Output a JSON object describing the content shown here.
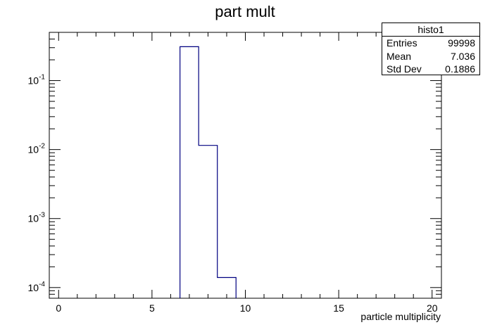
{
  "chart_data": {
    "type": "histogram",
    "title": "part mult",
    "xlabel": "particle multiplicity",
    "ylabel": "",
    "xlim": [
      -0.5,
      20.5
    ],
    "ylim": [
      7e-05,
      0.5
    ],
    "yscale": "log",
    "bin_width": 1,
    "bins": [
      {
        "x0": 6.5,
        "x1": 7.5,
        "value": 0.31
      },
      {
        "x0": 7.5,
        "x1": 8.5,
        "value": 0.0115
      },
      {
        "x0": 8.5,
        "x1": 9.5,
        "value": 0.00014
      }
    ],
    "line_color": "#000080",
    "x_ticks": [
      0,
      5,
      10,
      15,
      20
    ],
    "y_ticks": [
      {
        "value": 0.1,
        "base": "10",
        "exp": "-1"
      },
      {
        "value": 0.01,
        "base": "10",
        "exp": "-2"
      },
      {
        "value": 0.001,
        "base": "10",
        "exp": "-3"
      },
      {
        "value": 0.0001,
        "base": "10",
        "exp": "-4"
      }
    ],
    "grid": false
  },
  "stats": {
    "name": "histo1",
    "rows": [
      {
        "label": "Entries",
        "value": "99998"
      },
      {
        "label": "Mean",
        "value": "7.036"
      },
      {
        "label": "Std Dev",
        "value": "0.1886"
      }
    ]
  }
}
